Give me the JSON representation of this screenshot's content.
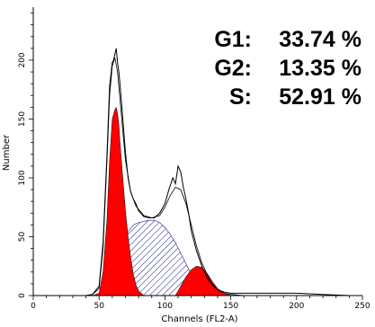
{
  "chart_data": {
    "type": "area",
    "xlabel": "Channels (FL2-A)",
    "ylabel": "Number",
    "xlim": [
      0,
      250
    ],
    "ylim": [
      0,
      245
    ],
    "x_ticks": [
      0,
      50,
      100,
      150,
      200,
      250
    ],
    "y_ticks": [
      0,
      50,
      100,
      150,
      200
    ],
    "annotations": [
      {
        "label": "G1:",
        "value": "33.74 %"
      },
      {
        "label": "G2:",
        "value": "13.35 %"
      },
      {
        "label": "S:",
        "value": "52.91 %"
      }
    ],
    "histogram": {
      "x": [
        40,
        45,
        50,
        53,
        56,
        58,
        60,
        61,
        62,
        63,
        64,
        65,
        66,
        68,
        70,
        72,
        74,
        76,
        78,
        80,
        84,
        88,
        92,
        96,
        100,
        103,
        106,
        108,
        110,
        112,
        114,
        116,
        118,
        120,
        124,
        128,
        132,
        136,
        140,
        145,
        150,
        160,
        180,
        200,
        220,
        240
      ],
      "y": [
        0,
        1,
        8,
        45,
        120,
        178,
        198,
        200,
        205,
        210,
        198,
        190,
        178,
        150,
        122,
        100,
        88,
        82,
        78,
        72,
        67,
        66,
        66,
        70,
        78,
        90,
        100,
        95,
        110,
        105,
        92,
        82,
        70,
        55,
        38,
        25,
        15,
        9,
        5,
        3,
        2,
        2,
        2,
        2,
        1,
        0
      ]
    },
    "series": [
      {
        "name": "G1",
        "color": "#ff0000",
        "x": [
          45,
          50,
          53,
          56,
          58,
          60,
          62,
          63,
          64,
          65,
          66,
          68,
          70,
          72,
          74,
          76,
          78,
          80,
          84
        ],
        "y": [
          0,
          2,
          20,
          65,
          115,
          150,
          158,
          160,
          155,
          145,
          128,
          100,
          72,
          50,
          32,
          18,
          9,
          4,
          0
        ]
      },
      {
        "name": "S",
        "color": "#1a1a8c",
        "x": [
          62,
          68,
          72,
          76,
          80,
          84,
          88,
          92,
          96,
          100,
          104,
          108,
          112,
          116,
          120,
          124,
          128,
          132,
          136
        ],
        "y": [
          0,
          40,
          54,
          60,
          62,
          63,
          64,
          64,
          62,
          58,
          52,
          45,
          36,
          27,
          18,
          11,
          5,
          2,
          0
        ]
      },
      {
        "name": "G2",
        "color": "#ff0000",
        "x": [
          108,
          112,
          116,
          120,
          124,
          128,
          132,
          136,
          140,
          145,
          150
        ],
        "y": [
          0,
          8,
          16,
          22,
          25,
          24,
          19,
          12,
          6,
          2,
          0
        ]
      }
    ],
    "fit_envelope": {
      "x": [
        40,
        45,
        50,
        53,
        56,
        58,
        60,
        62,
        64,
        66,
        68,
        70,
        74,
        78,
        84,
        90,
        96,
        100,
        104,
        108,
        112,
        116,
        120,
        124,
        128,
        132,
        136,
        140,
        145,
        150,
        160
      ],
      "y": [
        0,
        1,
        6,
        40,
        115,
        170,
        195,
        202,
        190,
        165,
        140,
        115,
        88,
        76,
        68,
        66,
        68,
        75,
        85,
        92,
        90,
        78,
        60,
        42,
        28,
        18,
        10,
        5,
        2,
        1,
        0
      ]
    }
  }
}
